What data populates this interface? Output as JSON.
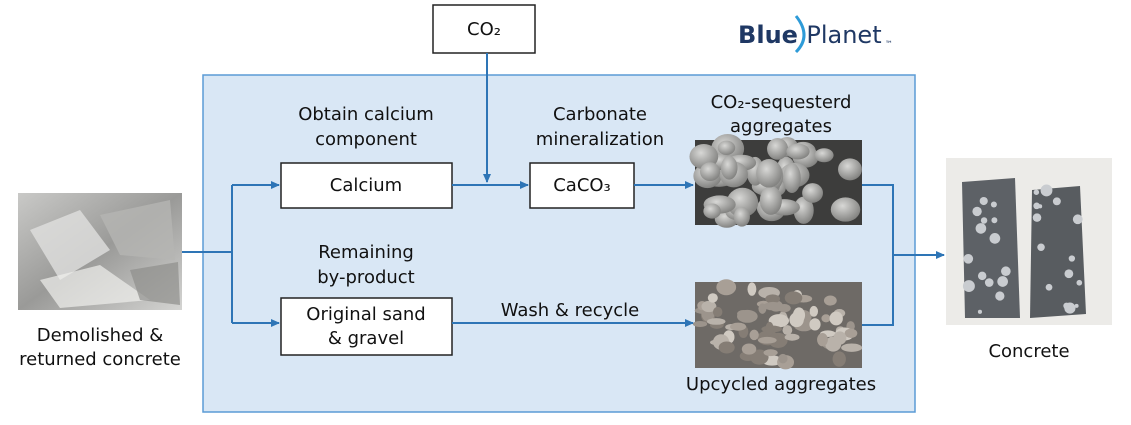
{
  "logo": {
    "blue": "Blue",
    "planet": "Planet",
    "tm": "™"
  },
  "input": {
    "co2": "CO₂"
  },
  "source": {
    "label": [
      "Demolished &",
      "returned concrete"
    ]
  },
  "steps": {
    "calcium": {
      "caption": [
        "Obtain calcium",
        "component"
      ],
      "box": "Calcium"
    },
    "carbonate": {
      "caption": [
        "Carbonate",
        "mineralization"
      ],
      "box": "CaCO₃"
    },
    "byproduct": {
      "caption": [
        "Remaining",
        "by-product"
      ],
      "box": [
        "Original sand",
        "& gravel"
      ]
    }
  },
  "edges": {
    "wash": "Wash & recycle"
  },
  "outputs": {
    "sequestered": [
      "CO₂-sequesterd",
      "aggregates"
    ],
    "upcycled": "Upcycled aggregates"
  },
  "product": {
    "label": "Concrete"
  }
}
